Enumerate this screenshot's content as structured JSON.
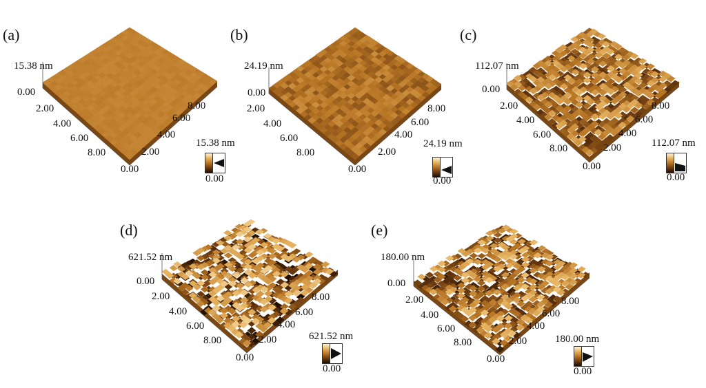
{
  "panels": [
    {
      "label": "(a)",
      "zmax": "15.38 nm",
      "zmin": "0.00",
      "xticks": [
        "2.00",
        "4.00",
        "6.00",
        "8.00"
      ],
      "yticks": [
        "2.00",
        "4.00",
        "6.00",
        "8.00"
      ],
      "origin": "0.00",
      "scale_top": "15.38 nm",
      "scale_bottom": "0.00",
      "roughness": 0.03
    },
    {
      "label": "(b)",
      "zmax": "24.19 nm",
      "zmin": "0.00",
      "xticks": [
        "2.00",
        "4.00",
        "6.00",
        "8.00"
      ],
      "yticks": [
        "2.00",
        "4.00",
        "6.00",
        "8.00"
      ],
      "origin": "0.00",
      "scale_top": "24.19 nm",
      "scale_bottom": "0.00",
      "roughness": 0.15
    },
    {
      "label": "(c)",
      "zmax": "112.07 nm",
      "zmin": "0.00",
      "xticks": [
        "2.00",
        "4.00",
        "6.00",
        "8.00"
      ],
      "yticks": [
        "2.00",
        "4.00",
        "6.00",
        "8.00"
      ],
      "origin": "0.00",
      "scale_top": "112.07 nm",
      "scale_bottom": "0.00",
      "roughness": 0.35
    },
    {
      "label": "(d)",
      "zmax": "621.52 nm",
      "zmin": "0.00",
      "xticks": [
        "2.00",
        "4.00",
        "6.00",
        "8.00"
      ],
      "yticks": [
        "2.00",
        "4.00",
        "6.00",
        "8.00"
      ],
      "origin": "0.00",
      "scale_top": "621.52 nm",
      "scale_bottom": "0.00",
      "roughness": 0.55
    },
    {
      "label": "(e)",
      "zmax": "180.00 nm",
      "zmin": "0.00",
      "xticks": [
        "2.00",
        "4.00",
        "6.00",
        "8.00"
      ],
      "yticks": [
        "2.00",
        "4.00",
        "6.00",
        "8.00"
      ],
      "origin": "0.00",
      "scale_top": "180.00 nm",
      "scale_bottom": "0.00",
      "roughness": 0.45
    }
  ],
  "colors": {
    "low": "#1e0d02",
    "mid": "#b87625",
    "high": "#fff6d8"
  }
}
